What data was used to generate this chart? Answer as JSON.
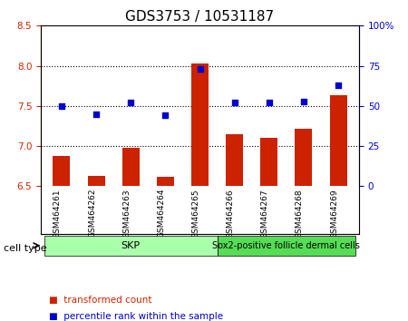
{
  "title": "GDS3753 / 10531187",
  "samples": [
    "GSM464261",
    "GSM464262",
    "GSM464263",
    "GSM464264",
    "GSM464265",
    "GSM464266",
    "GSM464267",
    "GSM464268",
    "GSM464269"
  ],
  "transformed_count": [
    6.88,
    6.63,
    6.98,
    6.62,
    8.03,
    7.15,
    7.1,
    7.22,
    7.63
  ],
  "percentile_rank": [
    50,
    45,
    52,
    44,
    73,
    52,
    52,
    53,
    63
  ],
  "ylim_left": [
    6.5,
    8.5
  ],
  "ylim_right": [
    0,
    100
  ],
  "yticks_left": [
    6.5,
    7.0,
    7.5,
    8.0,
    8.5
  ],
  "yticks_right": [
    0,
    25,
    50,
    75,
    100
  ],
  "ytick_labels_right": [
    "0",
    "25",
    "50",
    "75",
    "100%"
  ],
  "bar_color": "#cc2200",
  "dot_color": "#0000cc",
  "cell_type_groups": [
    {
      "label": "SKP",
      "start": 0,
      "end": 4,
      "color": "#aaffaa"
    },
    {
      "label": "Sox2-positive follicle dermal cells",
      "start": 5,
      "end": 8,
      "color": "#44dd44"
    }
  ],
  "cell_type_label": "cell type",
  "legend_items": [
    {
      "label": "transformed count",
      "color": "#cc2200"
    },
    {
      "label": "percentile rank within the sample",
      "color": "#0000cc"
    }
  ],
  "grid_color": "#000000",
  "background_color": "#ffffff",
  "plot_bg": "#ffffff",
  "tick_label_area_color": "#cccccc",
  "title_fontsize": 11,
  "tick_fontsize": 7.5,
  "axis_label_fontsize": 8
}
